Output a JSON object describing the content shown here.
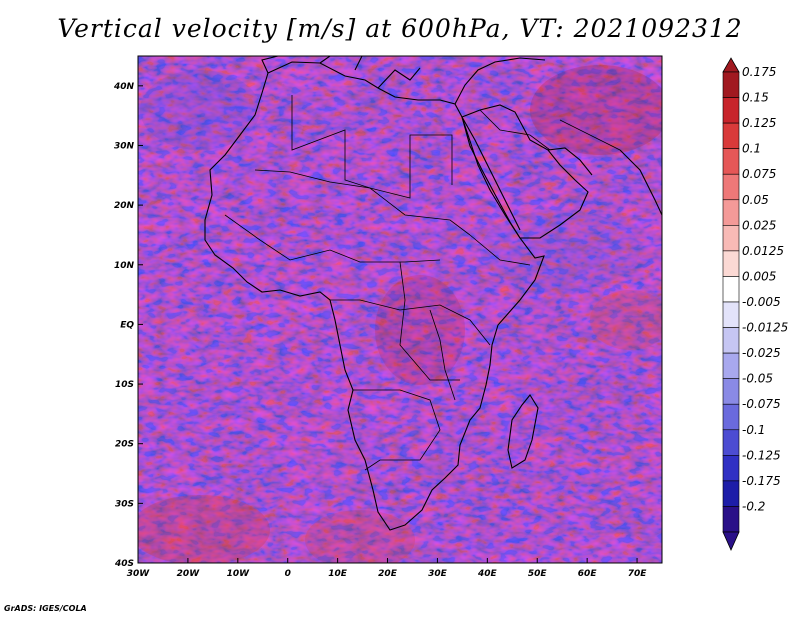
{
  "title": "Vertical velocity [m/s] at 600hPa, VT: 2021092312",
  "credit": "GrADS: IGES/COLA",
  "map": {
    "region": "Africa",
    "lon_range": [
      -30,
      75
    ],
    "lat_range": [
      -40,
      45
    ],
    "lat_ticks": [
      "40N",
      "30N",
      "20N",
      "10N",
      "EQ",
      "10S",
      "20S",
      "30S",
      "40S"
    ],
    "lon_ticks": [
      "30W",
      "20W",
      "10W",
      "0",
      "10E",
      "20E",
      "30E",
      "40E",
      "50E",
      "60E",
      "70E"
    ]
  },
  "colorbar": {
    "labels": [
      "0.175",
      "0.15",
      "0.125",
      "0.1",
      "0.075",
      "0.05",
      "0.025",
      "0.0125",
      "0.005",
      "-0.005",
      "-0.0125",
      "-0.025",
      "-0.05",
      "-0.075",
      "-0.1",
      "-0.125",
      "-0.175",
      "-0.2"
    ],
    "colors": [
      "#a11920",
      "#c8242b",
      "#d93a3a",
      "#e55757",
      "#ee7878",
      "#f49a98",
      "#f8bab6",
      "#fbd9d4",
      "#ffffff",
      "#e3e3fa",
      "#c6c6f3",
      "#a8a8ee",
      "#8a8ae5",
      "#6a6add",
      "#4c4cd2",
      "#3030c4",
      "#1d1da8",
      "#2a1088"
    ]
  }
}
